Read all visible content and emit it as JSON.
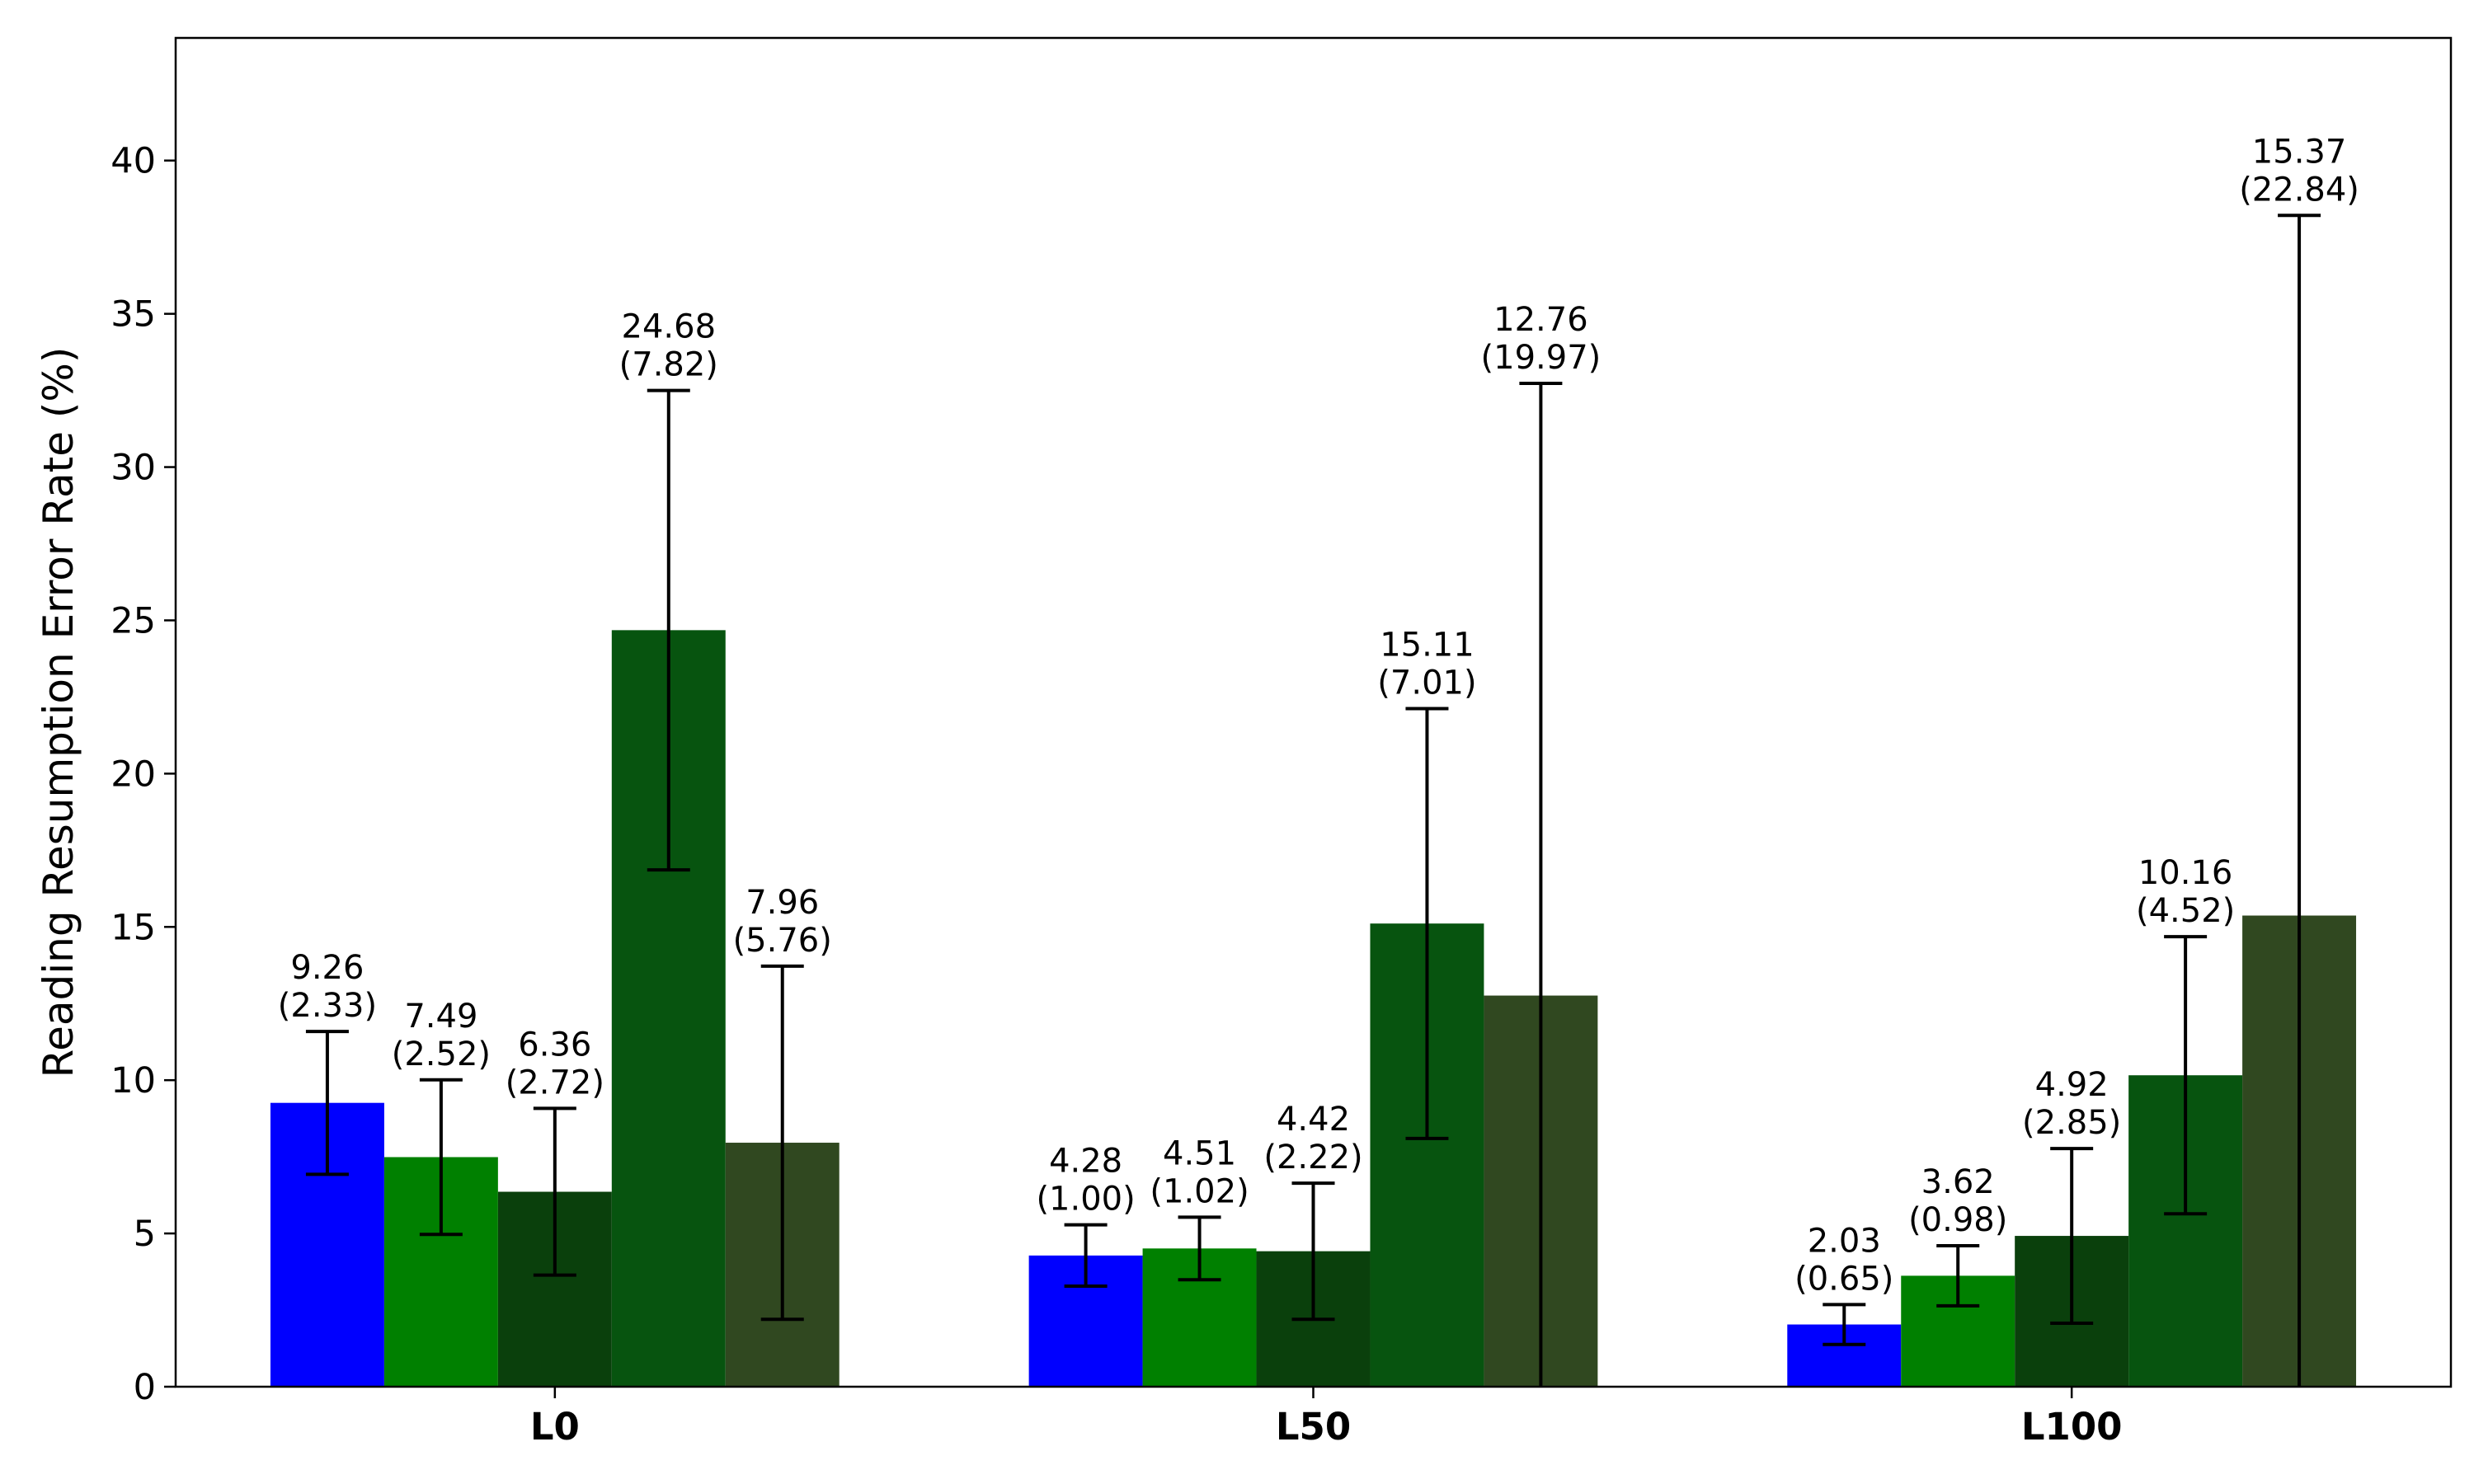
{
  "chart_data": {
    "type": "bar",
    "title": "",
    "xlabel": "",
    "ylabel": "Reading Resumption Error Rate (%)",
    "ylim": [
      0,
      44
    ],
    "yticks": [
      0,
      5,
      10,
      15,
      20,
      25,
      30,
      35,
      40
    ],
    "grid": false,
    "categories": [
      "L0",
      "L50",
      "L100"
    ],
    "series": [
      {
        "color": "#0000ff",
        "values": [
          9.26,
          4.28,
          2.03
        ],
        "errors": [
          2.33,
          1.0,
          0.65
        ],
        "labels": [
          "9.26\n(2.33)",
          "4.28\n(1.00)",
          "2.03\n(0.65)"
        ]
      },
      {
        "color": "#008000",
        "values": [
          7.49,
          4.51,
          3.62
        ],
        "errors": [
          2.52,
          1.02,
          0.98
        ],
        "labels": [
          "7.49\n(2.52)",
          "4.51\n(1.02)",
          "3.62\n(0.98)"
        ]
      },
      {
        "color": "#0a400c",
        "values": [
          6.36,
          4.42,
          4.92
        ],
        "errors": [
          2.72,
          2.22,
          2.85
        ],
        "labels": [
          "6.36\n(2.72)",
          "4.42\n(2.22)",
          "4.92\n(2.85)"
        ]
      },
      {
        "color": "#07540f",
        "values": [
          24.68,
          15.11,
          10.16
        ],
        "errors": [
          7.82,
          7.01,
          4.52
        ],
        "labels": [
          "24.68\n(7.82)",
          "15.11\n(7.01)",
          "10.16\n(4.52)"
        ]
      },
      {
        "color": "#304820",
        "values": [
          7.96,
          12.76,
          15.37
        ],
        "errors": [
          5.76,
          19.97,
          22.84
        ],
        "labels": [
          "7.96\n(5.76)",
          "12.76\n(19.97)",
          "15.37\n(22.84)"
        ]
      }
    ]
  }
}
